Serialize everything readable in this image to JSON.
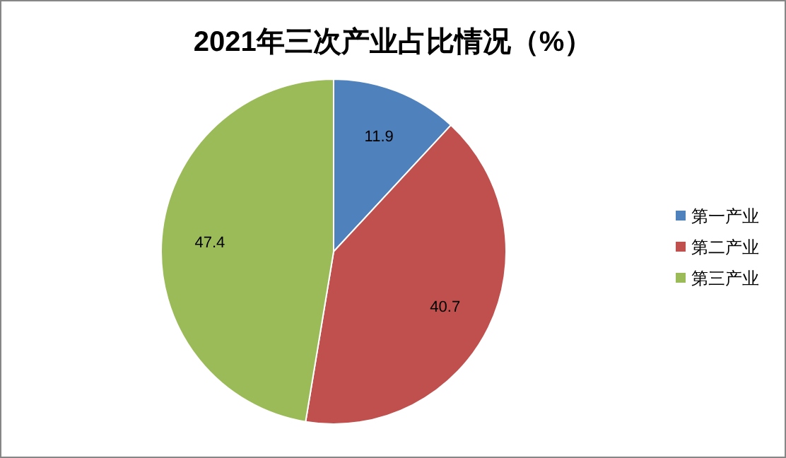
{
  "chart_data": {
    "type": "pie",
    "title": "2021年三次产业占比情况（%）",
    "categories": [
      "第一产业",
      "第二产业",
      "第三产业"
    ],
    "values": [
      11.9,
      40.7,
      47.4
    ],
    "colors": [
      "#4f81bd",
      "#c0504d",
      "#9bbb59"
    ],
    "data_labels": true,
    "legend": "right"
  }
}
